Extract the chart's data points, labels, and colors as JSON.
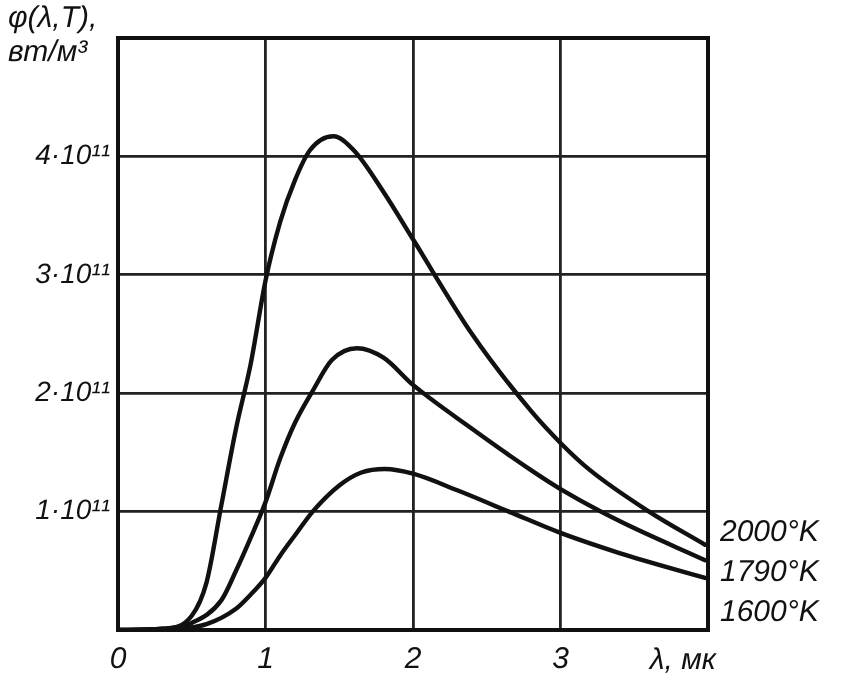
{
  "chart_data": {
    "type": "line",
    "xlabel": "λ, мк",
    "ylabel": "φ(λ,T), вт/м³",
    "xlim": [
      0,
      4
    ],
    "ylim": [
      0,
      500000000000.0
    ],
    "xticks": [
      0,
      1,
      2,
      3
    ],
    "yticks": [
      {
        "value": 100000000000.0,
        "label": "1·10¹¹"
      },
      {
        "value": 200000000000.0,
        "label": "2·10¹¹"
      },
      {
        "value": 300000000000.0,
        "label": "3·10¹¹"
      },
      {
        "value": 400000000000.0,
        "label": "4·10¹¹"
      }
    ],
    "grid": true,
    "legend": false,
    "marker": "none",
    "line_style": "solid",
    "series": [
      {
        "name": "2000°K",
        "color": "#111111",
        "x": [
          0,
          0.3,
          0.5,
          0.6,
          0.7,
          0.8,
          0.9,
          1.0,
          1.1,
          1.2,
          1.3,
          1.46,
          1.6,
          1.8,
          2.0,
          2.4,
          2.8,
          3.0,
          3.2,
          3.6,
          3.98
        ],
        "values": [
          0,
          1000000000.0,
          12000000000.0,
          40000000000.0,
          105000000000.0,
          170000000000.0,
          225000000000.0,
          295000000000.0,
          345000000000.0,
          380000000000.0,
          405000000000.0,
          417000000000.0,
          405000000000.0,
          370000000000.0,
          330000000000.0,
          250000000000.0,
          185000000000.0,
          158000000000.0,
          135000000000.0,
          100000000000.0,
          72000000000.0
        ]
      },
      {
        "name": "1790°K",
        "color": "#111111",
        "x": [
          0,
          0.3,
          0.5,
          0.7,
          0.8,
          0.9,
          1.0,
          1.1,
          1.2,
          1.32,
          1.45,
          1.62,
          1.8,
          2.0,
          2.4,
          2.8,
          3.0,
          3.4,
          3.98
        ],
        "values": [
          0,
          1000000000.0,
          6000000000.0,
          25000000000.0,
          50000000000.0,
          78000000000.0,
          108000000000.0,
          145000000000.0,
          175000000000.0,
          202000000000.0,
          228000000000.0,
          238000000000.0,
          230000000000.0,
          207000000000.0,
          170000000000.0,
          135000000000.0,
          119000000000.0,
          92000000000.0,
          59000000000.0
        ]
      },
      {
        "name": "1600°K",
        "color": "#111111",
        "x": [
          0,
          0.4,
          0.6,
          0.8,
          0.9,
          1.0,
          1.1,
          1.2,
          1.32,
          1.5,
          1.65,
          1.81,
          2.0,
          2.3,
          2.65,
          3.0,
          3.4,
          3.98
        ],
        "values": [
          0,
          1000000000.0,
          5000000000.0,
          18000000000.0,
          30000000000.0,
          44000000000.0,
          63000000000.0,
          80000000000.0,
          100000000000.0,
          122000000000.0,
          133000000000.0,
          136000000000.0,
          132000000000.0,
          118000000000.0,
          100000000000.0,
          82000000000.0,
          65000000000.0,
          44000000000.0
        ]
      }
    ]
  }
}
